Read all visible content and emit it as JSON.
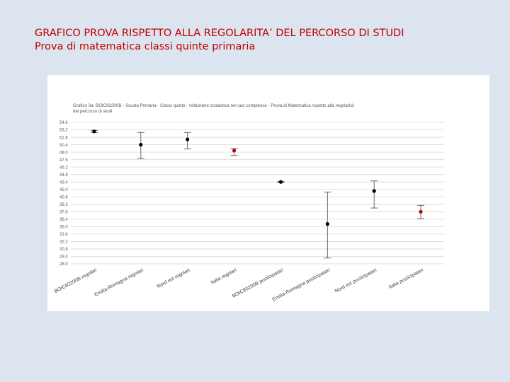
{
  "slide": {
    "title_line1": "GRAFICO PROVA RISPETTO ALLA REGOLARITA’ DEL PERCORSO DI STUDI",
    "title_line2": "Prova di matematica classi quinte primaria"
  },
  "chart_data": {
    "type": "scatter",
    "title": "Grafico 3a: BOIC83200B - Scuola Primaria - Classi quinte - Istituzione scolastica nel suo complesso - Prova di Matematica rispetto alla regolarità del percorso di studi",
    "y_ticks": [
      "54.6",
      "53.2",
      "51.8",
      "50.4",
      "49.0",
      "47.6",
      "46.2",
      "44.8",
      "43.4",
      "42.0",
      "40.6",
      "39.2",
      "37.8",
      "36.4",
      "35.0",
      "33.6",
      "32.2",
      "30.8",
      "29.4",
      "28.0"
    ],
    "ylim": [
      28.0,
      54.6
    ],
    "grid": true,
    "categories": [
      "BOIC83200B regolari",
      "Emilia-Romagna regolari",
      "Nord est regolari",
      "Italia regolari",
      "BOIC83200B posticipatari",
      "Emilia-Romagna posticipatari",
      "Nord est posticipatari",
      "Italia posticipatari"
    ],
    "points": [
      {
        "value": 52.9,
        "low": 52.7,
        "high": 53.1,
        "color": "#000000"
      },
      {
        "value": 50.4,
        "low": 47.8,
        "high": 52.7,
        "color": "#000000"
      },
      {
        "value": 51.4,
        "low": 49.6,
        "high": 52.7,
        "color": "#000000"
      },
      {
        "value": 49.3,
        "low": 48.4,
        "high": 49.7,
        "color": "#c00000"
      },
      {
        "value": 43.4,
        "low": 43.3,
        "high": 43.5,
        "color": "#000000"
      },
      {
        "value": 35.5,
        "low": 29.1,
        "high": 41.5,
        "color": "#000000"
      },
      {
        "value": 41.7,
        "low": 38.5,
        "high": 43.6,
        "color": "#000000"
      },
      {
        "value": 37.8,
        "low": 36.5,
        "high": 39.0,
        "color": "#c00000"
      }
    ]
  }
}
